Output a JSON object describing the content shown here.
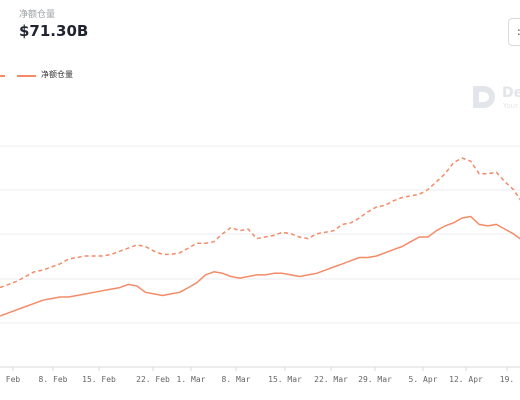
{
  "header": {
    "metric_label": "净额仓量",
    "metric_value": "$71.30B",
    "corner_button": ":"
  },
  "legend": [
    {
      "label": "",
      "style": "dashed"
    },
    {
      "label": "净额仓量",
      "style": "solid"
    }
  ],
  "watermark": {
    "text": "De",
    "subtext": "Your"
  },
  "colors": {
    "line": "#f38b68",
    "grid": "#eceef1",
    "axis_text": "#666666"
  },
  "chart_data": {
    "type": "line",
    "x_ticks": [
      "Feb",
      "8. Feb",
      "15. Feb",
      "22. Feb",
      "1. Mar",
      "8. Mar",
      "15. Mar",
      "22. Mar",
      "29. Mar",
      "5. Apr",
      "12. Apr",
      "19."
    ],
    "grid": true,
    "y_range": [
      0,
      100
    ],
    "series": [
      {
        "style": "dashed",
        "x": [
          0,
          3,
          6,
          9,
          12,
          15,
          18,
          21,
          24,
          27,
          30,
          33,
          36,
          39,
          42,
          45,
          48,
          51,
          54,
          57,
          60,
          63,
          66,
          69,
          72,
          75,
          78,
          81,
          84,
          87,
          90,
          93,
          96,
          99,
          102,
          105,
          108,
          111,
          114,
          117,
          120,
          123,
          126,
          129,
          132,
          135,
          138,
          141,
          144,
          147,
          150,
          153,
          156,
          159,
          162,
          165,
          168,
          171,
          174,
          177,
          180,
          183
        ],
        "values": [
          18,
          20,
          22,
          25,
          28,
          29,
          31,
          33,
          36,
          37,
          38,
          38,
          38,
          39,
          41,
          43,
          45,
          44,
          41,
          39,
          39,
          40,
          43,
          46,
          46,
          47,
          52,
          56,
          54,
          55,
          49,
          50,
          51,
          53,
          52,
          50,
          49,
          52,
          53,
          54,
          58,
          59,
          62,
          66,
          69,
          70,
          73,
          75,
          76,
          77,
          80,
          85,
          90,
          97,
          100,
          98,
          90,
          90,
          91,
          85,
          80,
          72
        ]
      },
      {
        "style": "solid",
        "x": [
          0,
          3,
          6,
          9,
          12,
          15,
          18,
          21,
          24,
          27,
          30,
          33,
          36,
          39,
          42,
          45,
          48,
          51,
          54,
          57,
          60,
          63,
          66,
          69,
          72,
          75,
          78,
          81,
          84,
          87,
          90,
          93,
          96,
          99,
          102,
          105,
          108,
          111,
          114,
          117,
          120,
          123,
          126,
          129,
          132,
          135,
          138,
          141,
          144,
          147,
          150,
          153,
          156,
          159,
          162,
          165,
          168,
          171,
          174,
          177,
          180,
          183
        ],
        "values": [
          0,
          2,
          4,
          6,
          8,
          10,
          11,
          12,
          12,
          13,
          14,
          15,
          16,
          17,
          18,
          20,
          19,
          15,
          14,
          13,
          14,
          15,
          18,
          21,
          26,
          28,
          27,
          25,
          24,
          25,
          26,
          26,
          27,
          27,
          26,
          25,
          26,
          27,
          29,
          31,
          33,
          35,
          37,
          37,
          38,
          40,
          42,
          44,
          47,
          50,
          50,
          54,
          57,
          59,
          62,
          63,
          58,
          57,
          58,
          55,
          52,
          48
        ]
      }
    ]
  }
}
